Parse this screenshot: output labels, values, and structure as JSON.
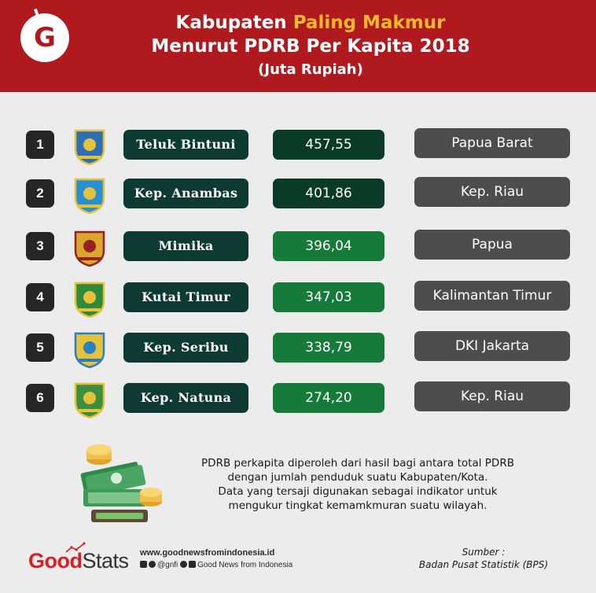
{
  "header": {
    "title_part1": "Kabupaten ",
    "title_highlight": "Paling Makmur",
    "title_line2": "Menurut PDRB Per Kapita 2018",
    "title_line3": "(Juta Rupiah)"
  },
  "chart_data": {
    "type": "table",
    "title": "Kabupaten Paling Makmur Menurut PDRB Per Kapita 2018",
    "subtitle": "(Juta Rupiah)",
    "rows": [
      {
        "rank": "1",
        "name": "Teluk Bintuni",
        "value": 457.55,
        "value_label": "457,55",
        "province": "Papua Barat"
      },
      {
        "rank": "2",
        "name": "Kep. Anambas",
        "value": 401.86,
        "value_label": "401,86",
        "province": "Kep. Riau"
      },
      {
        "rank": "3",
        "name": "Mimika",
        "value": 396.04,
        "value_label": "396,04",
        "province": "Papua"
      },
      {
        "rank": "4",
        "name": "Kutai Timur",
        "value": 347.03,
        "value_label": "347,03",
        "province": "Kalimantan Timur"
      },
      {
        "rank": "5",
        "name": "Kep. Seribu",
        "value": 338.79,
        "value_label": "338,79",
        "province": "DKI Jakarta"
      },
      {
        "rank": "6",
        "name": "Kep. Natuna",
        "value": 274.2,
        "value_label": "274,20",
        "province": "Kep. Riau"
      }
    ]
  },
  "colors": {
    "header_bg": "#b01a1f",
    "highlight": "#f6b92b",
    "value_top": "#093b26",
    "value_rest": "#167a3a",
    "name_bg": "#0d3b33",
    "province_bg": "#4d4d4d"
  },
  "note": {
    "lines": [
      "PDRB perkapita diperoleh dari hasil bagi antara total PDRB",
      "dengan jumlah penduduk suatu Kabupaten/Kota.",
      "Data yang tersaji digunakan sebagai indikator untuk",
      "mengukur tingkat kemamkmuran suatu wilayah."
    ]
  },
  "footer": {
    "brand_good": "Good",
    "brand_stats": "Stats",
    "website": "www.goodnewsfromindonesia.id",
    "social_handle": "@gnfi",
    "social_name": "Good News from Indonesia",
    "source_label": "Sumber :",
    "source_value": "Badan Pusat Statistik (BPS)"
  },
  "icons": [
    "gnfi-logo-icon",
    "regional-crest-icon",
    "money-stack-icon",
    "instagram-icon",
    "twitter-icon",
    "facebook-icon",
    "youtube-icon"
  ]
}
